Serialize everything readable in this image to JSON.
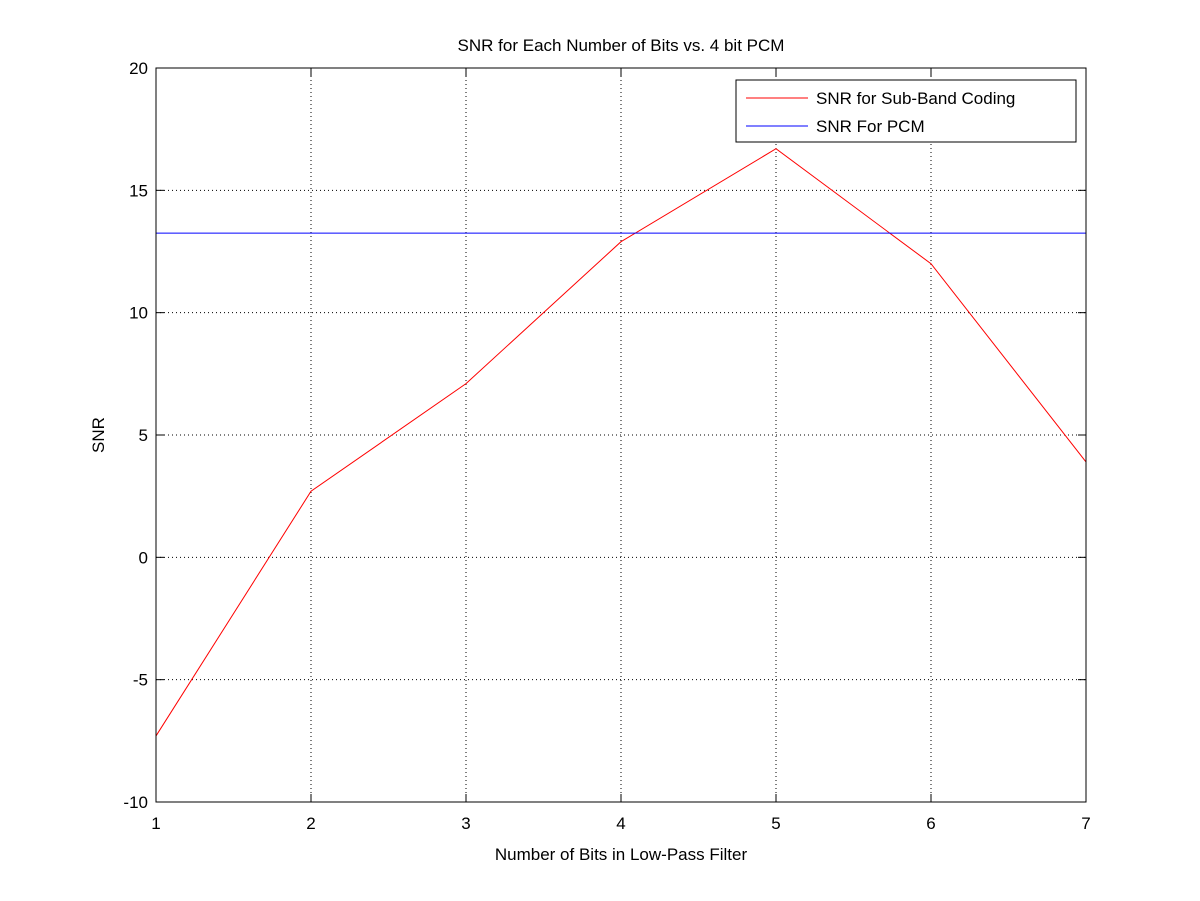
{
  "chart_data": {
    "type": "line",
    "title": "SNR for Each Number of Bits vs. 4 bit PCM",
    "xlabel": "Number of Bits in Low-Pass Filter",
    "ylabel": "SNR",
    "xlim": [
      1,
      7
    ],
    "ylim": [
      -10,
      20
    ],
    "xticks": [
      1,
      2,
      3,
      4,
      5,
      6,
      7
    ],
    "yticks": [
      -10,
      -5,
      0,
      5,
      10,
      15,
      20
    ],
    "grid": true,
    "legend_position": "top-right",
    "series": [
      {
        "name": "SNR for Sub-Band Coding",
        "color": "#ff0000",
        "x": [
          1,
          2,
          3,
          4,
          5,
          6,
          7
        ],
        "y": [
          -7.3,
          2.7,
          7.1,
          12.9,
          16.7,
          12.0,
          3.9
        ]
      },
      {
        "name": "SNR For PCM",
        "color": "#0000ff",
        "x": [
          1,
          7
        ],
        "y": [
          13.25,
          13.25
        ]
      }
    ]
  }
}
